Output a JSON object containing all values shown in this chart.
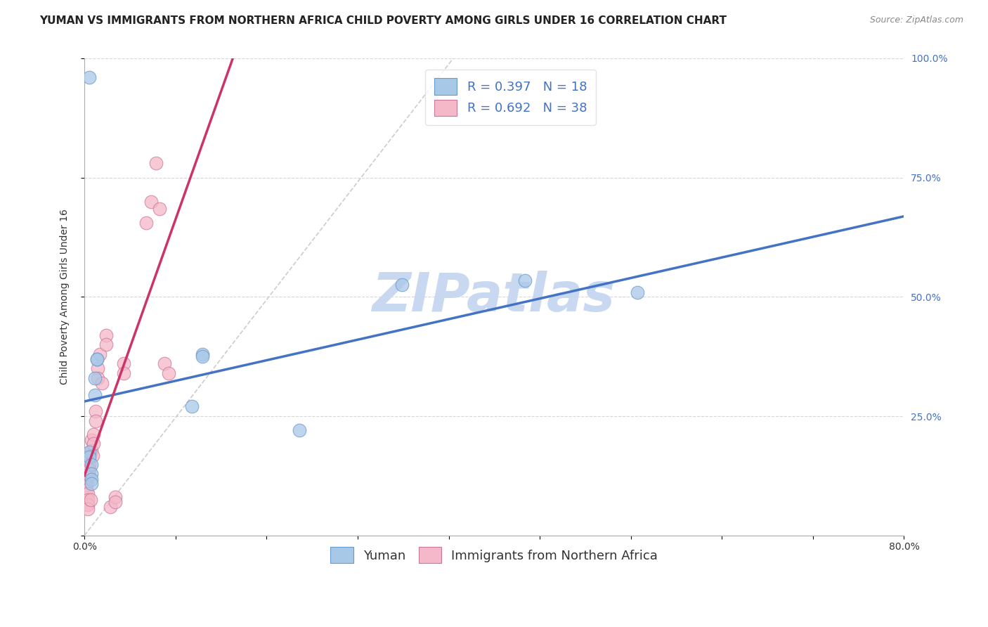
{
  "title": "YUMAN VS IMMIGRANTS FROM NORTHERN AFRICA CHILD POVERTY AMONG GIRLS UNDER 16 CORRELATION CHART",
  "source": "Source: ZipAtlas.com",
  "ylabel": "Child Poverty Among Girls Under 16",
  "xlim": [
    0,
    0.8
  ],
  "ylim": [
    0,
    1.0
  ],
  "xticks": [
    0.0,
    0.08888,
    0.17778,
    0.26667,
    0.35556,
    0.44444,
    0.53333,
    0.62222,
    0.71111,
    0.8
  ],
  "yticks": [
    0.0,
    0.25,
    0.5,
    0.75,
    1.0
  ],
  "ytick_labels": [
    "",
    "25.0%",
    "50.0%",
    "75.0%",
    "100.0%"
  ],
  "series1_name": "Yuman",
  "series1_color": "#a8c8e8",
  "series1_edge_color": "#6699cc",
  "series1_line_color": "#4472c4",
  "series2_name": "Immigrants from Northern Africa",
  "series2_color": "#f4b8c8",
  "series2_edge_color": "#cc7799",
  "series2_line_color": "#cc3366",
  "legend_R1": "R = 0.397   N = 18",
  "legend_R2": "R = 0.692   N = 38",
  "legend_text_color": "#4472c4",
  "watermark": "ZIPatlas",
  "watermark_color": "#c8d8f0",
  "yuman_x": [
    0.005,
    0.005,
    0.005,
    0.007,
    0.007,
    0.007,
    0.007,
    0.01,
    0.01,
    0.012,
    0.012,
    0.105,
    0.115,
    0.115,
    0.21,
    0.31,
    0.43,
    0.54
  ],
  "yuman_y": [
    0.96,
    0.175,
    0.165,
    0.148,
    0.13,
    0.118,
    0.108,
    0.33,
    0.295,
    0.37,
    0.37,
    0.27,
    0.38,
    0.375,
    0.22,
    0.525,
    0.535,
    0.51
  ],
  "immigrants_x": [
    0.002,
    0.002,
    0.002,
    0.002,
    0.003,
    0.003,
    0.003,
    0.003,
    0.004,
    0.004,
    0.005,
    0.005,
    0.005,
    0.006,
    0.007,
    0.007,
    0.008,
    0.009,
    0.009,
    0.011,
    0.011,
    0.013,
    0.013,
    0.015,
    0.017,
    0.021,
    0.021,
    0.025,
    0.03,
    0.03,
    0.038,
    0.038,
    0.06,
    0.065,
    0.07,
    0.073,
    0.078,
    0.082
  ],
  "immigrants_y": [
    0.12,
    0.115,
    0.105,
    0.095,
    0.088,
    0.075,
    0.065,
    0.055,
    0.14,
    0.128,
    0.168,
    0.148,
    0.138,
    0.075,
    0.2,
    0.178,
    0.168,
    0.212,
    0.192,
    0.26,
    0.24,
    0.35,
    0.33,
    0.38,
    0.32,
    0.42,
    0.4,
    0.06,
    0.08,
    0.07,
    0.36,
    0.34,
    0.655,
    0.7,
    0.78,
    0.685,
    0.36,
    0.34
  ],
  "ref_line_x": [
    0.0,
    0.36
  ],
  "ref_line_y": [
    0.0,
    1.0
  ],
  "title_fontsize": 11,
  "tick_fontsize": 10,
  "legend_fontsize": 13,
  "axis_label_fontsize": 10,
  "background_color": "#ffffff",
  "grid_color": "#cccccc",
  "right_tick_color": "#4472c4"
}
